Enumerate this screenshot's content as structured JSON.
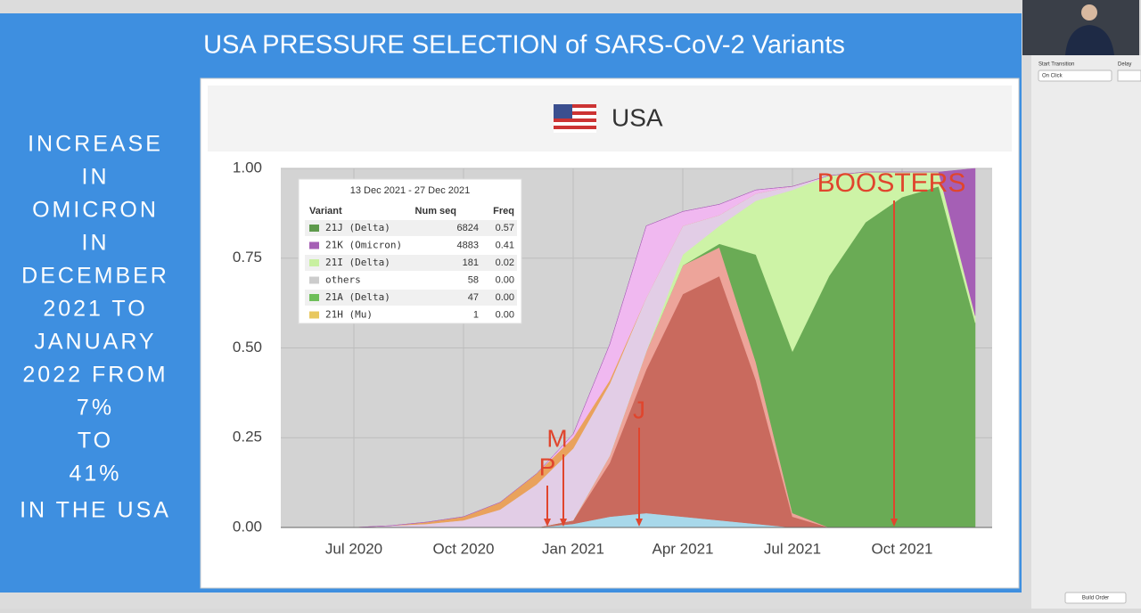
{
  "slide": {
    "title": "USA PRESSURE SELECTION of SARS-CoV-2 Variants",
    "side_text": [
      "INCREASE",
      "IN",
      "OMICRON",
      "IN",
      "DECEMBER",
      "2021 TO",
      "JANUARY",
      "2022 FROM",
      "7%",
      "TO",
      "41%",
      "IN THE USA"
    ]
  },
  "chart_data": {
    "type": "stacked-area",
    "title": "USA",
    "x": [
      "May 2020",
      "Jun 2020",
      "Jul 2020",
      "Aug 2020",
      "Sep 2020",
      "Oct 2020",
      "Nov 2020",
      "Dec 2020",
      "Jan 2021",
      "Feb 2021",
      "Mar 2021",
      "Apr 2021",
      "May 2021",
      "Jun 2021",
      "Jul 2021",
      "Aug 2021",
      "Sep 2021",
      "Oct 2021",
      "Nov 2021",
      "Dec 2021"
    ],
    "xticks": [
      "Jul 2020",
      "Oct 2020",
      "Jan 2021",
      "Apr 2021",
      "Jul 2021",
      "Oct 2021"
    ],
    "ylim": [
      0,
      1
    ],
    "yticks": [
      {
        "value": 0,
        "label": "0.00"
      },
      {
        "value": 0.25,
        "label": "0.25"
      },
      {
        "value": 0.5,
        "label": "0.50"
      },
      {
        "value": 0.75,
        "label": "0.75"
      },
      {
        "value": 1,
        "label": "1.00"
      }
    ],
    "grid": true,
    "series": [
      {
        "color": "#a8d8ea",
        "values": [
          0,
          0,
          0,
          0,
          0,
          0,
          0,
          0,
          0.01,
          0.03,
          0.04,
          0.03,
          0.02,
          0.01,
          0,
          0,
          0,
          0,
          0,
          0
        ]
      },
      {
        "color": "#c96a5e",
        "values": [
          0,
          0,
          0,
          0,
          0,
          0,
          0,
          0,
          0.01,
          0.15,
          0.4,
          0.62,
          0.68,
          0.4,
          0.03,
          0,
          0,
          0,
          0,
          0
        ]
      },
      {
        "color": "#eda49a",
        "values": [
          0,
          0,
          0,
          0,
          0,
          0,
          0,
          0,
          0,
          0.02,
          0.05,
          0.08,
          0.08,
          0.05,
          0.01,
          0,
          0,
          0,
          0,
          0
        ]
      },
      {
        "color": "#6aab55",
        "values": [
          0,
          0,
          0,
          0,
          0,
          0,
          0,
          0,
          0,
          0,
          0,
          0,
          0.01,
          0.3,
          0.45,
          0.7,
          0.85,
          0.92,
          0.95,
          0.57
        ]
      },
      {
        "color": "#cdf3a6",
        "values": [
          0,
          0,
          0,
          0,
          0,
          0,
          0,
          0,
          0,
          0,
          0,
          0.03,
          0.05,
          0.15,
          0.45,
          0.28,
          0.14,
          0.07,
          0.04,
          0.02
        ]
      },
      {
        "color": "#e2cde6",
        "values": [
          0,
          0,
          0,
          0.005,
          0.01,
          0.02,
          0.05,
          0.12,
          0.2,
          0.2,
          0.15,
          0.08,
          0.03,
          0.02,
          0.01,
          0,
          0,
          0,
          0,
          0
        ]
      },
      {
        "color": "#e9a25c",
        "values": [
          0,
          0,
          0,
          0,
          0.005,
          0.01,
          0.02,
          0.03,
          0.03,
          0.01,
          0,
          0,
          0,
          0,
          0,
          0,
          0,
          0,
          0,
          0
        ]
      },
      {
        "color": "#f0b8f0",
        "values": [
          0,
          0,
          0,
          0,
          0,
          0,
          0,
          0,
          0.01,
          0.1,
          0.2,
          0.04,
          0.03,
          0.01,
          0,
          0,
          0,
          0,
          0,
          0
        ]
      },
      {
        "color": "#a55fb5",
        "values": [
          0,
          0,
          0,
          0,
          0,
          0,
          0,
          0,
          0,
          0,
          0,
          0,
          0,
          0,
          0,
          0,
          0,
          0,
          0,
          0.41
        ]
      }
    ],
    "annotations": [
      "BOOSTERS",
      "J",
      "M",
      "P"
    ],
    "tooltip": {
      "title": "13 Dec 2021 - 27 Dec 2021",
      "columns": [
        "Variant",
        "Num seq",
        "Freq"
      ],
      "rows": [
        {
          "variant": "21J (Delta)",
          "num_seq": 6824,
          "freq": {
            "value": 0.57,
            "label": "0.57"
          },
          "color": "#5e9a4c"
        },
        {
          "variant": "21K (Omicron)",
          "num_seq": 4883,
          "freq": {
            "value": 0.41,
            "label": "0.41"
          },
          "color": "#a55fb5"
        },
        {
          "variant": "21I (Delta)",
          "num_seq": 181,
          "freq": {
            "value": 0.02,
            "label": "0.02"
          },
          "color": "#c8f0a0"
        },
        {
          "variant": "others",
          "num_seq": 58,
          "freq": {
            "value": 0,
            "label": "0.00"
          },
          "color": "#cccccc"
        },
        {
          "variant": "21A (Delta)",
          "num_seq": 47,
          "freq": {
            "value": 0,
            "label": "0.00"
          },
          "color": "#6fbf5a"
        },
        {
          "variant": "21H (Mu)",
          "num_seq": 1,
          "freq": {
            "value": 0,
            "label": "0.00"
          },
          "color": "#e8c860"
        }
      ]
    }
  },
  "sidebar": {
    "start_label": "Start Transition",
    "start_value": "On Click",
    "delay_label": "Delay",
    "build_order": "Build Order"
  }
}
